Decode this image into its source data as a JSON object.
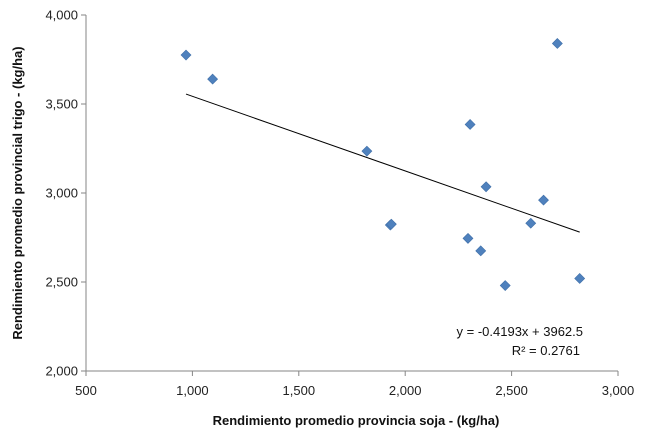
{
  "chart_data": {
    "type": "scatter",
    "xlabel": "Rendimiento promedio provincia soja - (kg/ha)",
    "ylabel": "Rendimiento promedio provincial trigo - (kg/ha)",
    "xlim": [
      500,
      3000
    ],
    "ylim": [
      2000,
      4000
    ],
    "x_ticks": [
      500,
      1000,
      1500,
      2000,
      2500,
      3000
    ],
    "x_tick_labels": [
      "500",
      "1,000",
      "1,500",
      "2,000",
      "2,500",
      "3,000"
    ],
    "y_ticks": [
      2000,
      2500,
      3000,
      3500,
      4000
    ],
    "y_tick_labels": [
      "2,000",
      "2,500",
      "3,000",
      "3,500",
      "4,000"
    ],
    "grid": false,
    "marker_color": "#4f81bd",
    "points": [
      {
        "x": 970,
        "y": 3775
      },
      {
        "x": 1095,
        "y": 3640
      },
      {
        "x": 1820,
        "y": 3235
      },
      {
        "x": 1930,
        "y": 2820
      },
      {
        "x": 1935,
        "y": 2825
      },
      {
        "x": 2295,
        "y": 2745
      },
      {
        "x": 2305,
        "y": 3385
      },
      {
        "x": 2355,
        "y": 2675
      },
      {
        "x": 2380,
        "y": 3035
      },
      {
        "x": 2470,
        "y": 2480
      },
      {
        "x": 2590,
        "y": 2830
      },
      {
        "x": 2650,
        "y": 2960
      },
      {
        "x": 2715,
        "y": 3840
      },
      {
        "x": 2820,
        "y": 2520
      }
    ],
    "trendline": {
      "type": "linear",
      "slope": -0.4193,
      "intercept": 3962.5,
      "x_range": [
        970,
        2820
      ],
      "equation": "y = -0.4193x + 3962.5",
      "r2_label": "R² = 0.2761"
    }
  }
}
